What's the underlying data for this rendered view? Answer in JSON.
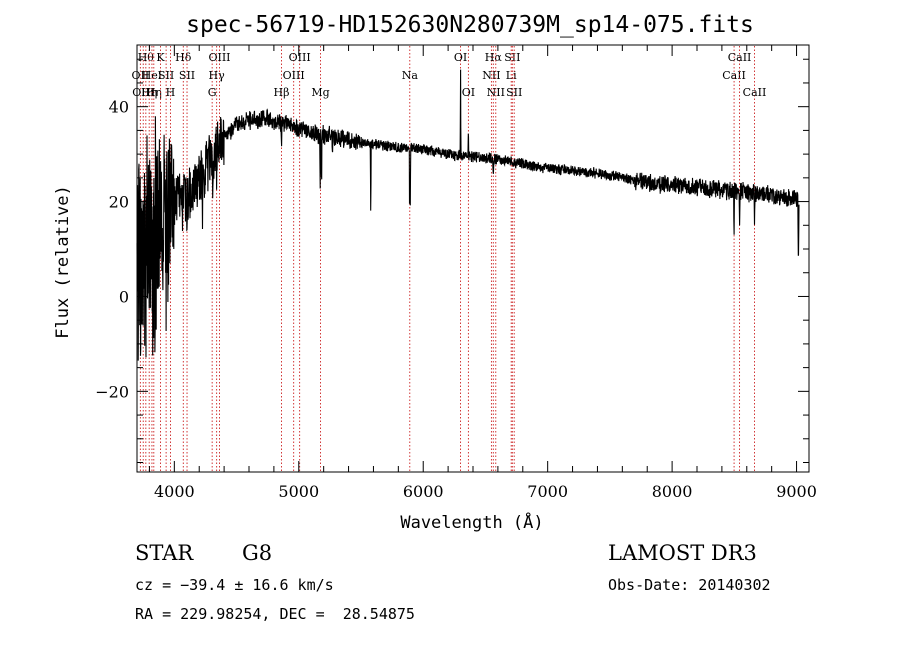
{
  "chart_data": {
    "type": "line",
    "title": "spec-56719-HD152630N280739M_sp14-075.fits",
    "xlabel": "Wavelength (Å)",
    "ylabel": "Flux (relative)",
    "xlim": [
      3700,
      9100
    ],
    "ylim": [
      -37,
      53
    ],
    "xticks": [
      4000,
      5000,
      6000,
      7000,
      8000,
      9000
    ],
    "xtick_labels": [
      "4000",
      "5000",
      "6000",
      "7000",
      "8000",
      "9000"
    ],
    "yticks": [
      -20,
      0,
      20,
      40
    ],
    "ytick_labels": [
      "−20",
      "0",
      "20",
      "40"
    ],
    "grid": false,
    "series": [
      {
        "name": "flux",
        "anchors": [
          [
            3700,
            5
          ],
          [
            3750,
            12
          ],
          [
            3800,
            10
          ],
          [
            3850,
            14
          ],
          [
            3900,
            16
          ],
          [
            3950,
            17
          ],
          [
            4000,
            20
          ],
          [
            4050,
            21
          ],
          [
            4100,
            20
          ],
          [
            4150,
            23
          ],
          [
            4200,
            25
          ],
          [
            4250,
            27
          ],
          [
            4300,
            29
          ],
          [
            4350,
            31
          ],
          [
            4400,
            34
          ],
          [
            4450,
            35
          ],
          [
            4500,
            36
          ],
          [
            4600,
            37
          ],
          [
            4700,
            37.5
          ],
          [
            4800,
            37
          ],
          [
            4900,
            36.5
          ],
          [
            5000,
            35.5
          ],
          [
            5100,
            34.5
          ],
          [
            5200,
            34
          ],
          [
            5300,
            33.5
          ],
          [
            5400,
            33
          ],
          [
            5500,
            32.5
          ],
          [
            5600,
            32
          ],
          [
            5800,
            31.5
          ],
          [
            6000,
            31
          ],
          [
            6200,
            30
          ],
          [
            6400,
            29.5
          ],
          [
            6600,
            29
          ],
          [
            6800,
            28
          ],
          [
            7000,
            27
          ],
          [
            7200,
            26.5
          ],
          [
            7400,
            26
          ],
          [
            7600,
            25
          ],
          [
            7800,
            24
          ],
          [
            8000,
            23.5
          ],
          [
            8200,
            23
          ],
          [
            8400,
            22.5
          ],
          [
            8600,
            22
          ],
          [
            8800,
            21.5
          ],
          [
            9000,
            20.5
          ],
          [
            9020,
            20
          ]
        ],
        "noise_ranges": [
          {
            "from": 3700,
            "to": 3860,
            "amplitude": 28
          },
          {
            "from": 3860,
            "to": 4000,
            "amplitude": 20
          },
          {
            "from": 4000,
            "to": 4400,
            "amplitude": 7
          },
          {
            "from": 4400,
            "to": 5500,
            "amplitude": 2.2
          },
          {
            "from": 5500,
            "to": 7700,
            "amplitude": 1.3
          },
          {
            "from": 7700,
            "to": 9020,
            "amplitude": 2.2
          }
        ],
        "absorption_features": [
          {
            "wave": 3934,
            "depth": 12
          },
          {
            "wave": 3969,
            "depth": 10
          },
          {
            "wave": 4102,
            "depth": 6
          },
          {
            "wave": 4226,
            "depth": 6
          },
          {
            "wave": 4308,
            "depth": 10
          },
          {
            "wave": 4340,
            "depth": 6
          },
          {
            "wave": 4861,
            "depth": 6
          },
          {
            "wave": 5172,
            "depth": 10
          },
          {
            "wave": 5183,
            "depth": 12
          },
          {
            "wave": 5270,
            "depth": 4
          },
          {
            "wave": 5578,
            "depth": 15
          },
          {
            "wave": 5892,
            "depth": 22
          },
          {
            "wave": 5896,
            "depth": 12
          },
          {
            "wave": 6563,
            "depth": 5
          },
          {
            "wave": 8498,
            "depth": 10
          },
          {
            "wave": 8542,
            "depth": 8
          },
          {
            "wave": 8662,
            "depth": 6
          },
          {
            "wave": 9015,
            "depth": 17
          }
        ],
        "emission_features": [
          {
            "wave": 5893,
            "height": 18
          },
          {
            "wave": 6300,
            "height": 19
          },
          {
            "wave": 6363,
            "height": 6
          }
        ]
      }
    ],
    "line_markers": [
      {
        "wave": 3727,
        "label": "OII",
        "row": 1
      },
      {
        "wave": 3750,
        "label": "OIII",
        "row": 2
      },
      {
        "wave": 3771,
        "label": "Hθ",
        "row": 0
      },
      {
        "wave": 3798,
        "label": "Hη",
        "row": 2
      },
      {
        "wave": 3820,
        "label": "HeI",
        "row": 1
      },
      {
        "wave": 3835,
        "label": "Hη",
        "row": 2
      },
      {
        "wave": 3889,
        "label": "K",
        "row": 0
      },
      {
        "wave": 3934,
        "label": "SII",
        "row": 1
      },
      {
        "wave": 3969,
        "label": "H",
        "row": 2
      },
      {
        "wave": 4072,
        "label": "Hδ",
        "row": 0
      },
      {
        "wave": 4102,
        "label": "SII",
        "row": 1
      },
      {
        "wave": 4304,
        "label": "G",
        "row": 2
      },
      {
        "wave": 4340,
        "label": "Hγ",
        "row": 1
      },
      {
        "wave": 4363,
        "label": "OIII",
        "row": 0
      },
      {
        "wave": 4861,
        "label": "Hβ",
        "row": 2
      },
      {
        "wave": 4959,
        "label": "OIII",
        "row": 1
      },
      {
        "wave": 5007,
        "label": "OIII",
        "row": 0
      },
      {
        "wave": 5175,
        "label": "Mg",
        "row": 2
      },
      {
        "wave": 5892,
        "label": "Na",
        "row": 1
      },
      {
        "wave": 6300,
        "label": "OI",
        "row": 0
      },
      {
        "wave": 6363,
        "label": "OI",
        "row": 2
      },
      {
        "wave": 6548,
        "label": "NII",
        "row": 1
      },
      {
        "wave": 6563,
        "label": "Hα",
        "row": 0
      },
      {
        "wave": 6583,
        "label": "NII",
        "row": 2
      },
      {
        "wave": 6707,
        "label": "Li",
        "row": 1
      },
      {
        "wave": 6716,
        "label": "SII",
        "row": 0
      },
      {
        "wave": 6731,
        "label": "SII",
        "row": 2
      },
      {
        "wave": 8498,
        "label": "CaII",
        "row": 1
      },
      {
        "wave": 8542,
        "label": "CaII",
        "row": 0
      },
      {
        "wave": 8662,
        "label": "CaII",
        "row": 2
      }
    ]
  },
  "info": {
    "object_class": "STAR",
    "subclass": "G8",
    "survey": "LAMOST DR3",
    "redshift_text": "cz = −39.4 ± 16.6 km/s",
    "coords_text": "RA = 229.98254, DEC =  28.54875",
    "obs_date_text": "Obs-Date: 20140302"
  },
  "colors": {
    "spectrum": "#000000",
    "marker": "#cc2222",
    "axes": "#000000",
    "background": "#ffffff"
  }
}
